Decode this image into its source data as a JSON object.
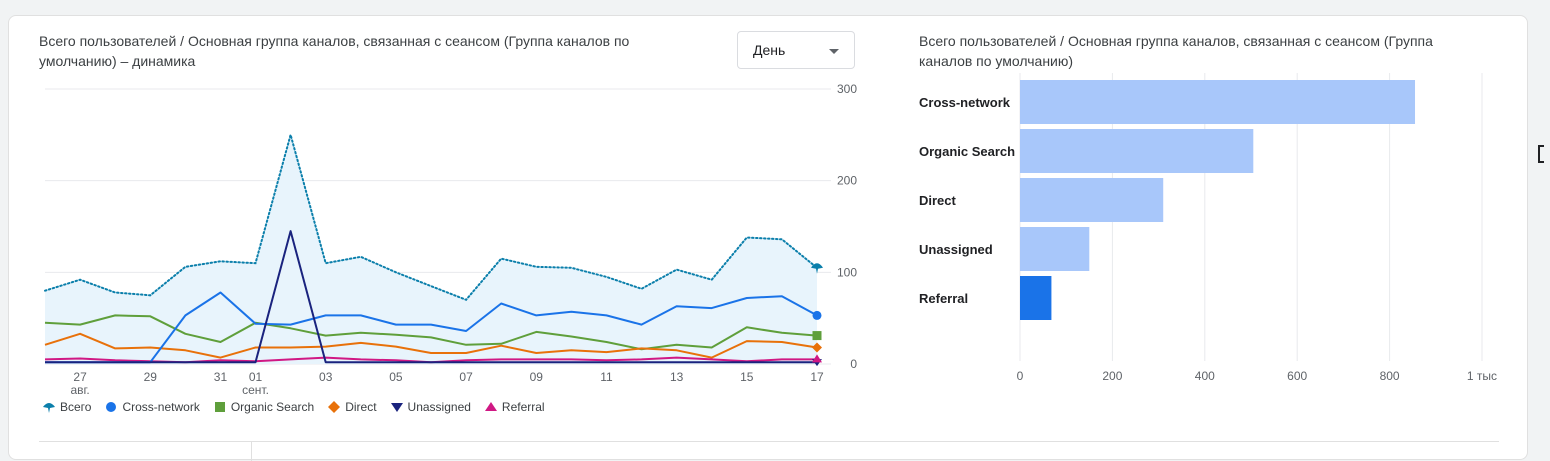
{
  "line_chart": {
    "title": "Всего пользователей / Основная группа каналов, связанная с сеансом (Группа каналов по умолчанию) – динамика",
    "dropdown": {
      "selected": "День"
    },
    "legend": [
      {
        "name": "Всего",
        "color": "#0b7fab",
        "icon": "total-icon"
      },
      {
        "name": "Cross-network",
        "color": "#1a73e8",
        "icon": "circle-icon"
      },
      {
        "name": "Organic Search",
        "color": "#5f9f3b",
        "icon": "square-icon"
      },
      {
        "name": "Direct",
        "color": "#e8710a",
        "icon": "diamond-icon"
      },
      {
        "name": "Unassigned",
        "color": "#1a237e",
        "icon": "triangle-down-icon"
      },
      {
        "name": "Referral",
        "color": "#d01884",
        "icon": "triangle-up-icon"
      }
    ]
  },
  "bar_chart": {
    "title": "Всего пользователей / Основная группа каналов, связанная с сеансом (Группа каналов по умолчанию)"
  },
  "chart_data": [
    {
      "type": "line",
      "title": "Всего пользователей / Основная группа каналов, связанная с сеансом (Группа каналов по умолчанию) – динамика",
      "x": [
        "26",
        "27",
        "28",
        "29",
        "30",
        "31",
        "01",
        "02",
        "03",
        "04",
        "05",
        "06",
        "07",
        "08",
        "09",
        "10",
        "11",
        "12",
        "13",
        "14",
        "15",
        "16",
        "17"
      ],
      "x_tick_labels": [
        {
          "x": "27",
          "label": "27",
          "sub": "авг."
        },
        {
          "x": "29",
          "label": "29",
          "sub": ""
        },
        {
          "x": "31",
          "label": "31",
          "sub": ""
        },
        {
          "x": "01",
          "label": "01",
          "sub": "сент."
        },
        {
          "x": "03",
          "label": "03",
          "sub": ""
        },
        {
          "x": "05",
          "label": "05",
          "sub": ""
        },
        {
          "x": "07",
          "label": "07",
          "sub": ""
        },
        {
          "x": "09",
          "label": "09",
          "sub": ""
        },
        {
          "x": "11",
          "label": "11",
          "sub": ""
        },
        {
          "x": "13",
          "label": "13",
          "sub": ""
        },
        {
          "x": "15",
          "label": "15",
          "sub": ""
        },
        {
          "x": "17",
          "label": "17",
          "sub": ""
        }
      ],
      "y_ticks": [
        0,
        100,
        200,
        300
      ],
      "ylim": [
        0,
        300
      ],
      "grid": true,
      "series": [
        {
          "name": "Всего",
          "style": "dotted-area",
          "color": "#0b7fab",
          "values": [
            80,
            92,
            78,
            75,
            106,
            112,
            110,
            250,
            110,
            117,
            100,
            85,
            70,
            115,
            106,
            105,
            95,
            82,
            103,
            92,
            138,
            136,
            105
          ]
        },
        {
          "name": "Cross-network",
          "style": "solid",
          "color": "#1a73e8",
          "values": [
            2,
            2,
            2,
            2,
            53,
            78,
            44,
            43,
            53,
            53,
            43,
            43,
            36,
            66,
            53,
            57,
            53,
            43,
            63,
            61,
            72,
            74,
            53
          ]
        },
        {
          "name": "Organic Search",
          "style": "solid",
          "color": "#5f9f3b",
          "values": [
            45,
            43,
            53,
            52,
            33,
            24,
            45,
            39,
            31,
            34,
            32,
            29,
            21,
            22,
            35,
            30,
            24,
            16,
            21,
            18,
            40,
            34,
            31
          ]
        },
        {
          "name": "Direct",
          "style": "solid",
          "color": "#e8710a",
          "values": [
            21,
            33,
            17,
            18,
            15,
            7,
            18,
            18,
            19,
            23,
            19,
            12,
            12,
            20,
            12,
            15,
            13,
            17,
            15,
            7,
            25,
            24,
            18
          ]
        },
        {
          "name": "Unassigned",
          "style": "solid",
          "color": "#1a237e",
          "values": [
            2,
            2,
            2,
            2,
            2,
            2,
            2,
            145,
            2,
            2,
            2,
            2,
            2,
            2,
            2,
            2,
            2,
            2,
            2,
            2,
            2,
            2,
            2
          ]
        },
        {
          "name": "Referral",
          "style": "solid",
          "color": "#d01884",
          "values": [
            5,
            6,
            4,
            3,
            2,
            4,
            3,
            5,
            7,
            5,
            4,
            2,
            4,
            5,
            5,
            5,
            4,
            5,
            7,
            5,
            3,
            5,
            5
          ]
        }
      ]
    },
    {
      "type": "bar",
      "orientation": "horizontal",
      "title": "Всего пользователей / Основная группа каналов, связанная с сеансом (Группа каналов по умолчанию)",
      "categories": [
        "Cross-network",
        "Organic Search",
        "Direct",
        "Unassigned",
        "Referral"
      ],
      "values": [
        855,
        505,
        310,
        150,
        68
      ],
      "colors": [
        "#a8c7fa",
        "#a8c7fa",
        "#a8c7fa",
        "#a8c7fa",
        "#1a73e8"
      ],
      "x_ticks": [
        0,
        200,
        400,
        600,
        800,
        1000
      ],
      "x_tick_labels": [
        "0",
        "200",
        "400",
        "600",
        "800",
        "1 тыс"
      ],
      "xlim": [
        0,
        1000
      ],
      "grid": true
    }
  ]
}
